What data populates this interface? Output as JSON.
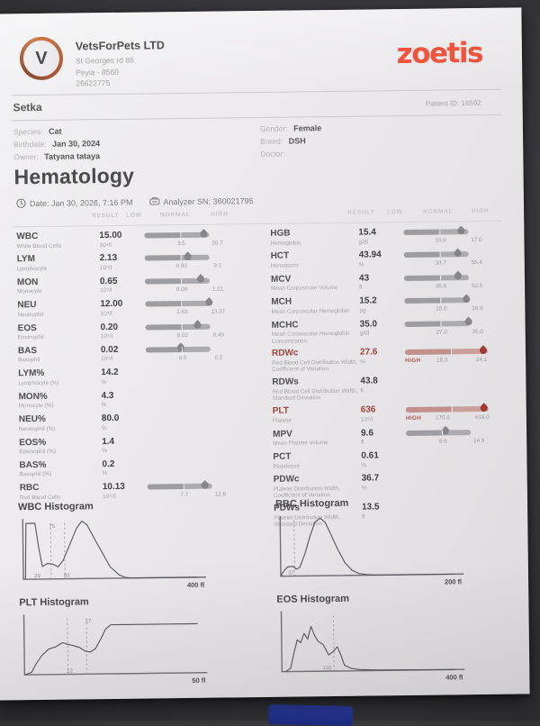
{
  "header": {
    "company": {
      "logo_letter": "V",
      "name": "VetsForPets LTD",
      "address_line1": "St Georges rd 86",
      "address_line2": "Peyia - 8560",
      "phone": "26622775"
    },
    "brand": "zoetis"
  },
  "patient": {
    "name": "Setka",
    "id_label": "Patient ID: 16592",
    "details_left": [
      {
        "label": "Species:",
        "value": "Cat"
      },
      {
        "label": "Birthdate:",
        "value": "Jan 30, 2024"
      },
      {
        "label": "Owner:",
        "value": "Tatyana tataya"
      }
    ],
    "details_right": [
      {
        "label": "Gender:",
        "value": "Female"
      },
      {
        "label": "Breed:",
        "value": "DSH"
      },
      {
        "label": "Doctor:",
        "value": ""
      }
    ]
  },
  "section": {
    "title": "Hematology",
    "date_label": "Date: Jan 30, 2026, 7:16 PM",
    "analyzer_label": "Analyzer SN: 360021795"
  },
  "table": {
    "headers": [
      "RESULT",
      "LOW",
      "NORMAL",
      "HIGH"
    ],
    "left_rows": [
      {
        "code": "WBC",
        "desc": "White Blood Cells",
        "result": "15.00",
        "unit": "10⁹/l",
        "bar": {
          "pos": 0.93,
          "low": "3.5",
          "high": "20.7",
          "flag": ""
        }
      },
      {
        "code": "LYM",
        "desc": "Lymphocyte",
        "result": "2.13",
        "unit": "10⁹/l",
        "bar": {
          "pos": 0.68,
          "low": "0.83",
          "high": "9.1",
          "flag": ""
        }
      },
      {
        "code": "MON",
        "desc": "Monocyte",
        "result": "0.65",
        "unit": "10⁹/l",
        "bar": {
          "pos": 0.88,
          "low": "0.09",
          "high": "1.21",
          "flag": ""
        }
      },
      {
        "code": "NEU",
        "desc": "Neutrophil",
        "result": "12.00",
        "unit": "10⁹/l",
        "bar": {
          "pos": 1.0,
          "low": "1.63",
          "high": "13.37",
          "flag": ""
        }
      },
      {
        "code": "EOS",
        "desc": "Eosinophil",
        "result": "0.20",
        "unit": "10⁹/l",
        "bar": {
          "pos": 0.82,
          "low": "0.02",
          "high": "0.49",
          "flag": ""
        }
      },
      {
        "code": "BAS",
        "desc": "Basophil",
        "result": "0.02",
        "unit": "10⁹/l",
        "bar": {
          "pos": 0.55,
          "low": "0.0",
          "high": "0.2",
          "flag": ""
        }
      },
      {
        "code": "LYM%",
        "desc": "Lymphocyte (%)",
        "result": "14.2",
        "unit": "%",
        "bar": null
      },
      {
        "code": "MON%",
        "desc": "Monocyte (%)",
        "result": "4.3",
        "unit": "%",
        "bar": null
      },
      {
        "code": "NEU%",
        "desc": "Neutrophil (%)",
        "result": "80.0",
        "unit": "%",
        "bar": null
      },
      {
        "code": "EOS%",
        "desc": "Eosinophil (%)",
        "result": "1.4",
        "unit": "%",
        "bar": null
      },
      {
        "code": "BAS%",
        "desc": "Basophil (%)",
        "result": "0.2",
        "unit": "%",
        "bar": null
      },
      {
        "code": "RBC",
        "desc": "Red Blood Cells",
        "result": "10.13",
        "unit": "10¹²/l",
        "bar": {
          "pos": 0.9,
          "low": "7.7",
          "high": "12.8",
          "flag": ""
        }
      }
    ],
    "right_rows": [
      {
        "code": "HGB",
        "desc": "Hemoglobin",
        "result": "15.4",
        "unit": "g/dl",
        "bar": {
          "pos": 0.9,
          "low": "10.0",
          "high": "17.0",
          "flag": ""
        }
      },
      {
        "code": "HCT",
        "desc": "Hematocrit",
        "result": "43.94",
        "unit": "%",
        "bar": {
          "pos": 0.85,
          "low": "33.7",
          "high": "55.4",
          "flag": ""
        }
      },
      {
        "code": "MCV",
        "desc": "Mean Corpuscular Volume",
        "result": "43",
        "unit": "fl",
        "bar": {
          "pos": 0.85,
          "low": "35.6",
          "high": "52.5",
          "flag": ""
        }
      },
      {
        "code": "MCH",
        "desc": "Mean Corpuscular Hemoglobin",
        "result": "15.2",
        "unit": "pg",
        "bar": {
          "pos": 0.97,
          "low": "10.0",
          "high": "16.9",
          "flag": ""
        }
      },
      {
        "code": "MCHC",
        "desc": "Mean Corpuscular Hemoglobin Concentration",
        "result": "35.0",
        "unit": "g/dl",
        "bar": {
          "pos": 1.0,
          "low": "27.0",
          "high": "35.0",
          "flag": ""
        }
      },
      {
        "code": "RDWc",
        "desc": "Red Blood Cell Distribution Width, Coefficient of Variation",
        "result": "27.6",
        "unit": "%",
        "bar": {
          "pos": 0.96,
          "low": "18.3",
          "high": "24.1",
          "flag": "HIGH"
        }
      },
      {
        "code": "RDWs",
        "desc": "Red Blood Cell Distribution Width, Standard Deviation",
        "result": "43.8",
        "unit": "fl",
        "bar": null
      },
      {
        "code": "PLT",
        "desc": "Platelet",
        "result": "636",
        "unit": "10⁹/l",
        "bar": {
          "pos": 0.96,
          "low": "175.0",
          "high": "618.0",
          "flag": "HIGH"
        }
      },
      {
        "code": "MPV",
        "desc": "Mean Platelet Volume",
        "result": "9.6",
        "unit": "fl",
        "bar": {
          "pos": 0.62,
          "low": "8.6",
          "high": "14.9",
          "flag": ""
        }
      },
      {
        "code": "PCT",
        "desc": "Plateletcrit",
        "result": "0.61",
        "unit": "%",
        "bar": null
      },
      {
        "code": "PDWc",
        "desc": "Platelet Distribution Width, Coefficient of Variation",
        "result": "36.7",
        "unit": "%",
        "bar": null
      },
      {
        "code": "PDWs",
        "desc": "Platelet Distribution Width, Standard Deviation",
        "result": "13.5",
        "unit": "fl",
        "bar": null
      }
    ]
  },
  "chart_data": [
    {
      "type": "area",
      "title": "WBC Histogram",
      "x_axis_label": "400 fl",
      "x_unit": "fl",
      "x_range": [
        0,
        400
      ],
      "grid": false,
      "legend": "none",
      "marker_lines": [
        0.16,
        0.24
      ],
      "marker_labels": [
        {
          "text": "29",
          "x": 0.08,
          "pos": "bottom"
        },
        {
          "text": "75",
          "x": 0.17,
          "pos": "top"
        },
        {
          "text": "93",
          "x": 0.25,
          "pos": "bottom"
        }
      ],
      "points": [
        [
          0.012,
          0
        ],
        [
          0.018,
          0.97
        ],
        [
          0.07,
          0.97
        ],
        [
          0.09,
          0.55
        ],
        [
          0.11,
          0.22
        ],
        [
          0.14,
          0.27
        ],
        [
          0.17,
          0.26
        ],
        [
          0.2,
          0.21
        ],
        [
          0.23,
          0.32
        ],
        [
          0.27,
          0.6
        ],
        [
          0.31,
          0.88
        ],
        [
          0.34,
          1.0
        ],
        [
          0.37,
          0.93
        ],
        [
          0.41,
          0.7
        ],
        [
          0.46,
          0.42
        ],
        [
          0.5,
          0.2
        ],
        [
          0.55,
          0.06
        ],
        [
          0.59,
          0.01
        ],
        [
          0.63,
          0
        ],
        [
          1.0,
          0
        ]
      ]
    },
    {
      "type": "area",
      "title": "RBC Histogram",
      "x_axis_label": "200 fl",
      "x_unit": "fl",
      "x_range": [
        0,
        200
      ],
      "grid": false,
      "legend": "none",
      "marker_lines": [
        0.08
      ],
      "marker_labels": [
        {
          "text": "37",
          "x": 0.06,
          "pos": "bottom"
        }
      ],
      "points": [
        [
          0.0,
          0
        ],
        [
          0.02,
          0.1
        ],
        [
          0.04,
          0.16
        ],
        [
          0.07,
          0.17
        ],
        [
          0.09,
          0.12
        ],
        [
          0.11,
          0.15
        ],
        [
          0.14,
          0.38
        ],
        [
          0.17,
          0.68
        ],
        [
          0.2,
          0.93
        ],
        [
          0.23,
          1.0
        ],
        [
          0.26,
          0.92
        ],
        [
          0.29,
          0.72
        ],
        [
          0.33,
          0.45
        ],
        [
          0.37,
          0.22
        ],
        [
          0.41,
          0.09
        ],
        [
          0.45,
          0.03
        ],
        [
          0.5,
          0.01
        ],
        [
          0.55,
          0
        ],
        [
          1.0,
          0
        ]
      ]
    },
    {
      "type": "area",
      "title": "PLT Histogram",
      "x_axis_label": "50 fl",
      "x_unit": "fl",
      "x_range": [
        0,
        50
      ],
      "grid": false,
      "legend": "none",
      "marker_lines": [
        0.25,
        0.36
      ],
      "marker_labels": [
        {
          "text": "12",
          "x": 0.26,
          "pos": "bottom"
        },
        {
          "text": "17",
          "x": 0.37,
          "pos": "top"
        }
      ],
      "points": [
        [
          0.0,
          0
        ],
        [
          0.04,
          0.04
        ],
        [
          0.07,
          0.2
        ],
        [
          0.1,
          0.33
        ],
        [
          0.14,
          0.44
        ],
        [
          0.18,
          0.48
        ],
        [
          0.22,
          0.55
        ],
        [
          0.25,
          0.52
        ],
        [
          0.28,
          0.5
        ],
        [
          0.32,
          0.46
        ],
        [
          0.35,
          0.4
        ],
        [
          0.38,
          0.38
        ],
        [
          0.41,
          0.44
        ],
        [
          0.44,
          0.6
        ],
        [
          0.47,
          0.78
        ],
        [
          0.5,
          0.85
        ],
        [
          1.0,
          0.85
        ]
      ]
    },
    {
      "type": "area",
      "title": "EOS Histogram",
      "x_axis_label": "400 fl",
      "x_unit": "fl",
      "x_range": [
        0,
        400
      ],
      "grid": false,
      "legend": "none",
      "marker_lines": [
        0.3
      ],
      "marker_labels": [
        {
          "text": "110",
          "x": 0.26,
          "pos": "bottom"
        }
      ],
      "points": [
        [
          0.02,
          0
        ],
        [
          0.05,
          0.06
        ],
        [
          0.07,
          0.32
        ],
        [
          0.09,
          0.55
        ],
        [
          0.11,
          0.5
        ],
        [
          0.13,
          0.66
        ],
        [
          0.15,
          0.56
        ],
        [
          0.17,
          0.78
        ],
        [
          0.19,
          0.62
        ],
        [
          0.21,
          0.52
        ],
        [
          0.24,
          0.46
        ],
        [
          0.27,
          0.28
        ],
        [
          0.3,
          0.35
        ],
        [
          0.32,
          0.42
        ],
        [
          0.34,
          0.28
        ],
        [
          0.36,
          0.1
        ],
        [
          0.4,
          0.04
        ],
        [
          0.45,
          0.02
        ],
        [
          0.55,
          0.01
        ],
        [
          1.0,
          0
        ]
      ]
    }
  ]
}
